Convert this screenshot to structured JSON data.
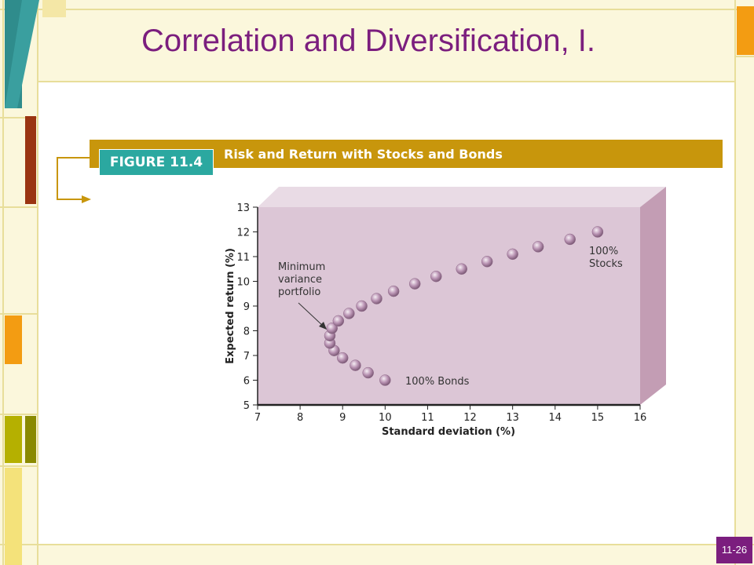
{
  "slide": {
    "title": "Correlation and Diversification, I.",
    "page_number": "11-26"
  },
  "figure": {
    "tag": "FIGURE 11.4",
    "caption": "Risk and Return with Stocks and Bonds"
  },
  "colors": {
    "title": "#7b1e7e",
    "banner": "#c8960c",
    "figure_tag": "#2ba8a0",
    "plot_face": "#dcc6d6",
    "plot_top": "#e9dbe5",
    "plot_side": "#c39db4",
    "point": "#b993b3",
    "frame_teal": "#2f8c8c",
    "frame_orange": "#f39c12",
    "frame_brown": "#9a3412",
    "frame_olive": "#8a8a00",
    "frame_cream": "#fbf7dc",
    "frame_line": "#e8de9a"
  },
  "chart_data": {
    "type": "scatter",
    "title": "Risk and Return with Stocks and Bonds",
    "xlabel": "Standard deviation (%)",
    "ylabel": "Expected return (%)",
    "xlim": [
      7,
      16
    ],
    "ylim": [
      5,
      13
    ],
    "xticks": [
      7,
      8,
      9,
      10,
      11,
      12,
      13,
      14,
      15,
      16
    ],
    "yticks": [
      5,
      6,
      7,
      8,
      9,
      10,
      11,
      12,
      13
    ],
    "grid": false,
    "series": [
      {
        "points": [
          [
            10.0,
            6.0
          ],
          [
            9.6,
            6.3
          ],
          [
            9.3,
            6.6
          ],
          [
            9.0,
            6.9
          ],
          [
            8.8,
            7.2
          ],
          [
            8.7,
            7.5
          ],
          [
            8.7,
            7.8
          ],
          [
            8.75,
            8.1
          ],
          [
            8.9,
            8.4
          ],
          [
            9.15,
            8.7
          ],
          [
            9.45,
            9.0
          ],
          [
            9.8,
            9.3
          ],
          [
            10.2,
            9.6
          ],
          [
            10.7,
            9.9
          ],
          [
            11.2,
            10.2
          ],
          [
            11.8,
            10.5
          ],
          [
            12.4,
            10.8
          ],
          [
            13.0,
            11.1
          ],
          [
            13.6,
            11.4
          ],
          [
            14.35,
            11.7
          ],
          [
            15.0,
            12.0
          ]
        ]
      }
    ],
    "annotations": {
      "min_variance": "Minimum\nvariance\nportfolio",
      "stocks": "100%\nStocks",
      "bonds": "100% Bonds"
    }
  }
}
